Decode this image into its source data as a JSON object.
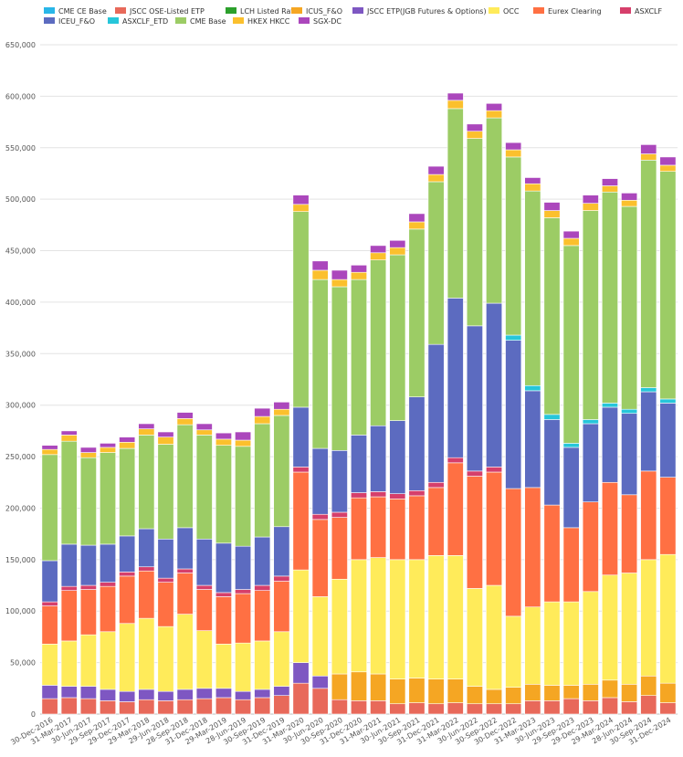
{
  "chart_data": {
    "type": "bar",
    "stacked": true,
    "legend_position": "top-left",
    "grid": true,
    "title": "",
    "xlabel": "",
    "ylabel": "",
    "ylim": [
      0,
      650000
    ],
    "yticks": [
      0,
      50000,
      100000,
      150000,
      200000,
      250000,
      300000,
      350000,
      400000,
      450000,
      500000,
      550000,
      600000,
      650000
    ],
    "ytick_labels": [
      "0",
      "50,000",
      "100,000",
      "150,000",
      "200,000",
      "250,000",
      "300,000",
      "350,000",
      "400,000",
      "450,000",
      "500,000",
      "550,000",
      "600,000",
      "650,000"
    ],
    "categories": [
      "30-Dec-2016",
      "31-Mar-2017",
      "30-Jun-2017",
      "29-Sep-2017",
      "29-Dec-2017",
      "29-Mar-2018",
      "29-Jun-2018",
      "28-Sep-2018",
      "31-Dec-2018",
      "29-Mar-2019",
      "28-Jun-2019",
      "30-Sep-2019",
      "31-Dec-2019",
      "31-Mar-2020",
      "30-Jun-2020",
      "30-Sep-2020",
      "31-Dec-2020",
      "31-Mar-2021",
      "30-Jun-2021",
      "30-Sep-2021",
      "31-Dec-2021",
      "31-Mar-2022",
      "30-Jun-2022",
      "30-Sep-2022",
      "30-Dec-2022",
      "31-Mar-2023",
      "30-Jun-2023",
      "29-Sep-2023",
      "29-Dec-2023",
      "29-Mar-2024",
      "28-Jun-2024",
      "30-Sep-2024",
      "31-Dec-2024"
    ],
    "x_labels": [
      "30-Dec-2016",
      "31-Mar-2017",
      "30-Jun-2017",
      "29-Sep-2017",
      "29-Dec-2017",
      "29-Mar-2018",
      "29-Jun-2018",
      "28-Sep-2018",
      "31-Dec-2018",
      "29-Mar-2019",
      "28-Jun-2019",
      "30-Sep-2019",
      "31-Dec-2019",
      "31-Mar-2020",
      "30-Jun-2020",
      "30-Sep-2020",
      "31-Dec-2020",
      "31-Mar-2021",
      "30-Jun-2021",
      "30-Sep-2021",
      "31-Dec-2021",
      "31-Mar-2022",
      "30-Jun-2022",
      "30-Sep-2022",
      "30-Dec-2022",
      "31-Mar-2023",
      "30-Jun-2023",
      "29-Sep-2023",
      "29-Dec-2023",
      "29-Mar-2024",
      "28-Jun-2024",
      "30-Sep-2024",
      "31-Dec-2024"
    ],
    "series": [
      {
        "name": "CME CE Base",
        "color": "#29b6e8",
        "values": [
          0,
          0,
          0,
          0,
          0,
          0,
          0,
          0,
          0,
          0,
          0,
          0,
          0,
          0,
          0,
          0,
          0,
          0,
          0,
          0,
          0,
          0,
          0,
          0,
          0,
          0,
          0,
          0,
          0,
          0,
          0,
          0,
          0
        ]
      },
      {
        "name": "JSCC OSE-Listed ETP",
        "color": "#e8695a",
        "values": [
          15000,
          16000,
          15000,
          13000,
          12000,
          14000,
          13000,
          14000,
          15000,
          16000,
          14000,
          16000,
          18000,
          30000,
          25000,
          14000,
          13000,
          13000,
          10000,
          11000,
          10000,
          11000,
          10000,
          10000,
          10000,
          13000,
          13000,
          15000,
          13000,
          16000,
          12000,
          18000,
          11000
        ]
      },
      {
        "name": "LCH Listed Rates",
        "color": "#2ca02c",
        "values": [
          0,
          0,
          0,
          0,
          0,
          0,
          0,
          0,
          0,
          0,
          0,
          0,
          0,
          0,
          0,
          0,
          0,
          0,
          0,
          0,
          0,
          0,
          0,
          0,
          0,
          0,
          0,
          0,
          0,
          0,
          0,
          0,
          0
        ]
      },
      {
        "name": "ICUS_F&O",
        "color": "#f5a623",
        "values": [
          0,
          0,
          0,
          0,
          0,
          0,
          0,
          0,
          0,
          0,
          0,
          0,
          0,
          0,
          0,
          25000,
          28000,
          26000,
          24000,
          24000,
          24000,
          23000,
          17000,
          14000,
          16000,
          16000,
          15000,
          13000,
          16000,
          17000,
          17000,
          19000,
          19000
        ]
      },
      {
        "name": "JSCC ETP(JGB Futures & Options)",
        "color": "#7e57c2",
        "values": [
          13000,
          11000,
          12000,
          11000,
          10000,
          10000,
          9000,
          10000,
          10000,
          9000,
          8000,
          8000,
          9000,
          20000,
          12000,
          0,
          0,
          0,
          0,
          0,
          0,
          0,
          0,
          0,
          0,
          0,
          0,
          0,
          0,
          0,
          0,
          0,
          0
        ]
      },
      {
        "name": "OCC",
        "color": "#ffeb5a",
        "values": [
          40000,
          44000,
          50000,
          56000,
          66000,
          69000,
          63000,
          73000,
          56000,
          43000,
          47000,
          47000,
          53000,
          90000,
          77000,
          92000,
          109000,
          113000,
          116000,
          115000,
          120000,
          120000,
          95000,
          101000,
          69000,
          75000,
          81000,
          81000,
          90000,
          102000,
          108000,
          113000,
          125000
        ]
      },
      {
        "name": "Eurex Clearing",
        "color": "#ff7043",
        "values": [
          37000,
          49000,
          44000,
          44000,
          46000,
          46000,
          43000,
          40000,
          40000,
          46000,
          48000,
          49000,
          49000,
          95000,
          75000,
          60000,
          60000,
          59000,
          59000,
          62000,
          66000,
          90000,
          109000,
          110000,
          124000,
          116000,
          94000,
          72000,
          87000,
          90000,
          76000,
          86000,
          75000
        ]
      },
      {
        "name": "ASXCLF",
        "color": "#d63f6b",
        "values": [
          4000,
          4000,
          4000,
          4000,
          4000,
          4000,
          4000,
          4000,
          4000,
          4000,
          4000,
          5000,
          5000,
          5000,
          5000,
          5000,
          5000,
          5000,
          5000,
          5000,
          5000,
          5000,
          5000,
          5000,
          0,
          0,
          0,
          0,
          0,
          0,
          0,
          0,
          0
        ]
      },
      {
        "name": "ICEU_F&O",
        "color": "#5c6bc0",
        "values": [
          40000,
          41000,
          39000,
          37000,
          35000,
          37000,
          38000,
          40000,
          45000,
          48000,
          42000,
          47000,
          48000,
          58000,
          64000,
          60000,
          56000,
          64000,
          71000,
          91000,
          134000,
          155000,
          141000,
          159000,
          144000,
          94000,
          83000,
          78000,
          76000,
          73000,
          79000,
          77000,
          72000
        ]
      },
      {
        "name": "ASXCLF_ETD",
        "color": "#26c6da",
        "values": [
          0,
          0,
          0,
          0,
          0,
          0,
          0,
          0,
          0,
          0,
          0,
          0,
          0,
          0,
          0,
          0,
          0,
          0,
          0,
          0,
          0,
          0,
          0,
          0,
          5000,
          5000,
          5000,
          4000,
          4000,
          4000,
          4000,
          4000,
          4000
        ]
      },
      {
        "name": "CME Base",
        "color": "#9ccc65",
        "values": [
          103000,
          100000,
          85000,
          89000,
          85000,
          91000,
          92000,
          100000,
          101000,
          95000,
          97000,
          110000,
          108000,
          190000,
          164000,
          159000,
          151000,
          161000,
          161000,
          163000,
          158000,
          184000,
          182000,
          180000,
          173000,
          189000,
          191000,
          192000,
          203000,
          205000,
          197000,
          221000,
          221000
        ]
      },
      {
        "name": "HKEX HKCC",
        "color": "#fbc02d",
        "values": [
          5000,
          6000,
          5000,
          5000,
          6000,
          6000,
          7000,
          6000,
          5000,
          6000,
          6000,
          7000,
          6000,
          7000,
          9000,
          7000,
          7000,
          7000,
          7000,
          7000,
          7000,
          8000,
          7000,
          7000,
          7000,
          7000,
          7000,
          7000,
          7000,
          6000,
          6000,
          6000,
          6000
        ]
      },
      {
        "name": "SGX-DC",
        "color": "#ab47bc",
        "values": [
          4000,
          4000,
          5000,
          4000,
          5000,
          5000,
          5000,
          6000,
          6000,
          6000,
          8000,
          8000,
          7000,
          9000,
          9000,
          9000,
          7000,
          7000,
          7000,
          8000,
          8000,
          7000,
          7000,
          7000,
          7000,
          6000,
          8000,
          7000,
          8000,
          7000,
          7000,
          9000,
          8000
        ]
      }
    ]
  }
}
